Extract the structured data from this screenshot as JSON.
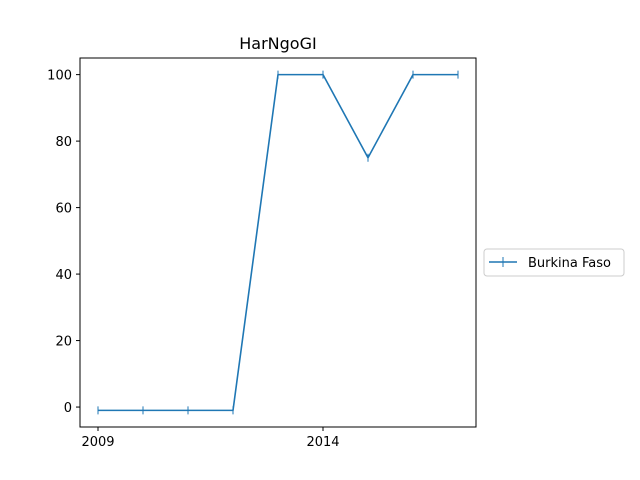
{
  "chart_data": {
    "type": "line",
    "title": "HarNgoGI",
    "xlabel": "",
    "ylabel": "",
    "x": [
      2009,
      2010,
      2011,
      2012,
      2013,
      2014,
      2015,
      2016,
      2017
    ],
    "series": [
      {
        "name": "Burkina Faso",
        "values": [
          -1,
          -1,
          -1,
          -1,
          100,
          100,
          75,
          100,
          100
        ],
        "color": "#1f77b4",
        "marker": "vertical-tick"
      }
    ],
    "xlim": [
      2008.6,
      2017.4
    ],
    "ylim": [
      -6,
      105
    ],
    "xticks": [
      2009,
      2014
    ],
    "yticks": [
      0,
      20,
      40,
      60,
      80,
      100
    ],
    "grid": false,
    "legend_position": "right-outside"
  }
}
